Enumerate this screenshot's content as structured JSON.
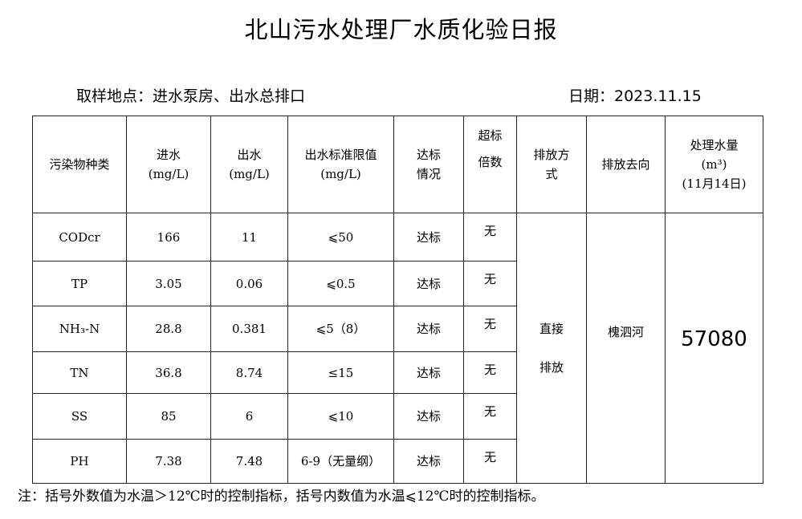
{
  "title": "北山污水处理厂水质化验日报",
  "location": "取样地点：进水泵房、出水总排口",
  "date": "日期：2023.11.15",
  "headers": {
    "pollutant": "污染物种类",
    "inflow": [
      "进水",
      "(mg/L)"
    ],
    "outflow": [
      "出水",
      "(mg/L)"
    ],
    "limit": [
      "出水标准限值",
      "(mg/L)"
    ],
    "compliance": [
      "达标",
      "情况"
    ],
    "exceed": [
      "超标",
      "倍数"
    ],
    "discharge_method": [
      "排放方",
      "式"
    ],
    "discharge_dest": "排放去向",
    "volume": [
      "处理水量",
      "(m³)",
      "(11月14日)"
    ]
  },
  "rows": [
    {
      "pollutant": "CODcr",
      "inflow": "166",
      "outflow": "11",
      "limit": "⩽50",
      "compliance": "达标",
      "exceed": "无"
    },
    {
      "pollutant": "TP",
      "inflow": "3.05",
      "outflow": "0.06",
      "limit": "⩽0.5",
      "compliance": "达标",
      "exceed": "无"
    },
    {
      "pollutant": "NH₃-N",
      "inflow": "28.8",
      "outflow": "0.381",
      "limit": "⩽5（8）",
      "compliance": "达标",
      "exceed": "无"
    },
    {
      "pollutant": "TN",
      "inflow": "36.8",
      "outflow": "8.74",
      "limit": "≤15",
      "compliance": "达标",
      "exceed": "无"
    },
    {
      "pollutant": "SS",
      "inflow": "85",
      "outflow": "6",
      "limit": "⩽10",
      "compliance": "达标",
      "exceed": "无"
    },
    {
      "pollutant": "PH",
      "inflow": "7.38",
      "outflow": "7.48",
      "limit": "6-9（无量纲）",
      "compliance": "达标",
      "exceed": "无"
    }
  ],
  "discharge_method": [
    "直接",
    "排放"
  ],
  "discharge_dest": "槐泗河",
  "volume": "57080",
  "note": "注：括号外数值为水温＞12℃时的控制指标，括号内数值为水温⩽12℃时的控制指标。"
}
